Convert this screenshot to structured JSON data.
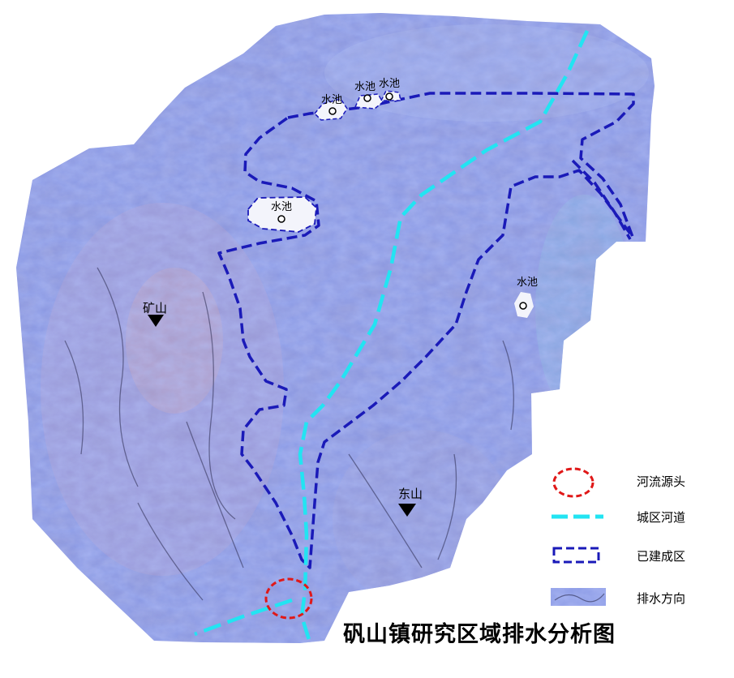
{
  "title": "矾山镇研究区域排水分析图",
  "labels": {
    "pool": "水池",
    "mine_mountain": "矿山",
    "east_mountain": "东山"
  },
  "legend": [
    {
      "key": "source",
      "label": "河流源头"
    },
    {
      "key": "river",
      "label": "城区河道"
    },
    {
      "key": "built",
      "label": "已建成区"
    },
    {
      "key": "drainage",
      "label": "排水方向"
    }
  ],
  "colors": {
    "river": "#22e4f2",
    "built_area": "#1a1ab8",
    "source_circle": "#e01818",
    "terrain_base": "#8c9be6",
    "peak_marker": "#000000"
  },
  "icons": [
    "pool-marker-icon",
    "peak-triangle-icon"
  ]
}
